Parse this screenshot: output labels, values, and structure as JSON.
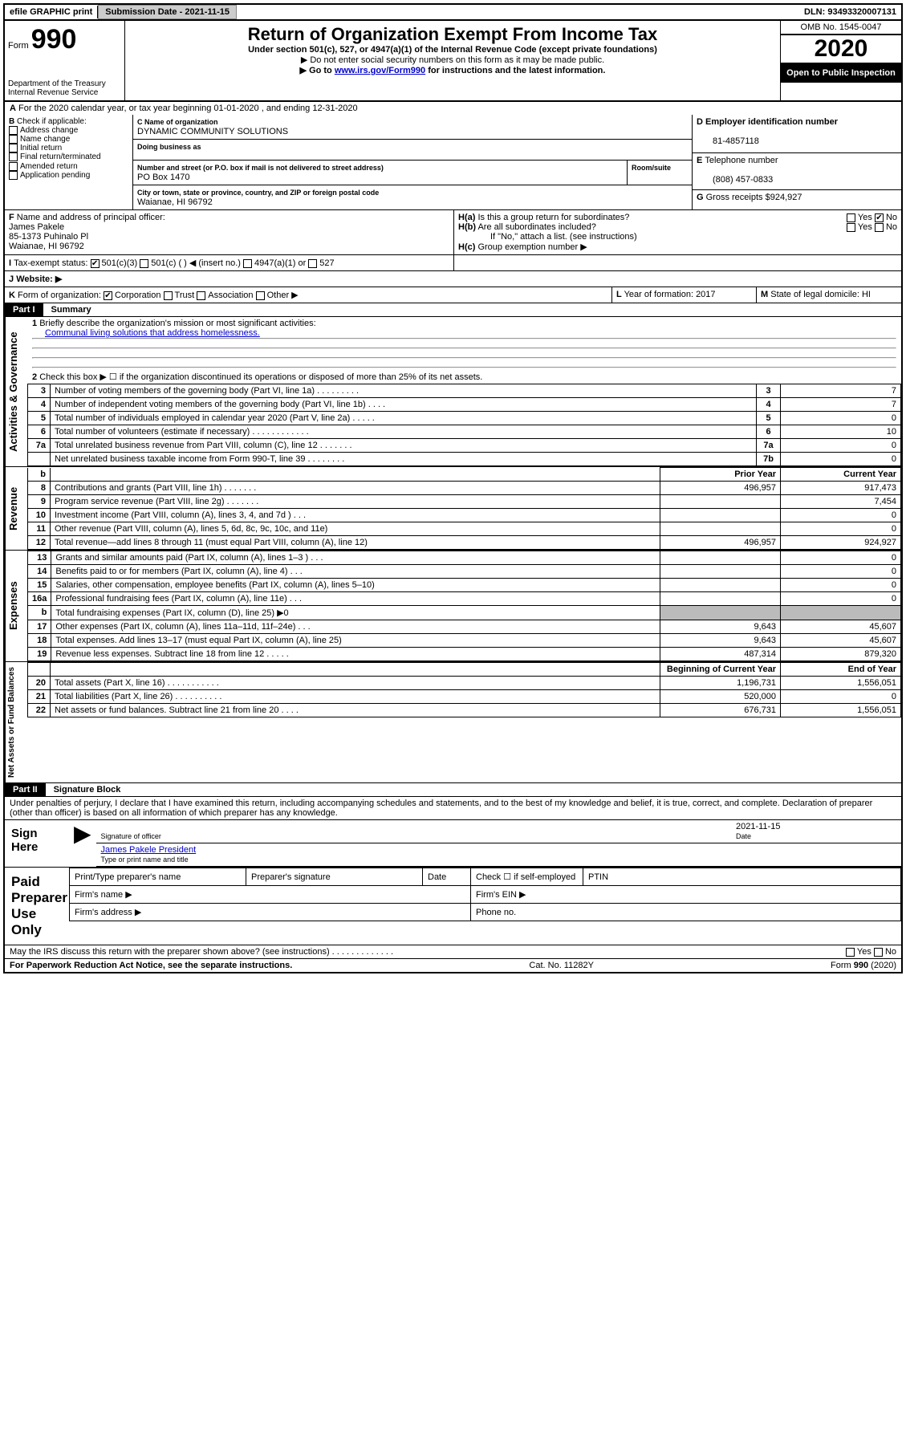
{
  "topbar": {
    "efile": "efile GRAPHIC print",
    "subdate_label": "Submission Date - ",
    "subdate": "2021-11-15",
    "dln_label": "DLN: ",
    "dln": "93493320007131"
  },
  "header": {
    "form_label": "Form",
    "form_num": "990",
    "dept": "Department of the Treasury",
    "irs": "Internal Revenue Service",
    "title": "Return of Organization Exempt From Income Tax",
    "subtitle": "Under section 501(c), 527, or 4947(a)(1) of the Internal Revenue Code (except private foundations)",
    "note1": "Do not enter social security numbers on this form as it may be made public.",
    "note2_pre": "Go to ",
    "note2_link": "www.irs.gov/Form990",
    "note2_post": " for instructions and the latest information.",
    "omb": "OMB No. 1545-0047",
    "year": "2020",
    "inspection": "Open to Public Inspection"
  },
  "period": {
    "text": "For the 2020 calendar year, or tax year beginning 01-01-2020   , and ending 12-31-2020"
  },
  "B": {
    "label": "Check if applicable:",
    "opts": [
      "Address change",
      "Name change",
      "Initial return",
      "Final return/terminated",
      "Amended return",
      "Application pending"
    ]
  },
  "C": {
    "name_label": "Name of organization",
    "name": "DYNAMIC COMMUNITY SOLUTIONS",
    "dba_label": "Doing business as",
    "street_label": "Number and street (or P.O. box if mail is not delivered to street address)",
    "room_label": "Room/suite",
    "street": "PO Box 1470",
    "city_label": "City or town, state or province, country, and ZIP or foreign postal code",
    "city": "Waianae, HI  96792"
  },
  "D": {
    "label": "Employer identification number",
    "val": "81-4857118"
  },
  "E": {
    "label": "Telephone number",
    "val": "(808) 457-0833"
  },
  "G": {
    "label": "Gross receipts $",
    "val": "924,927"
  },
  "F": {
    "label": "Name and address of principal officer:",
    "name": "James Pakele",
    "addr1": "85-1373 Puhinalo Pl",
    "addr2": "Waianae, HI  96792"
  },
  "H": {
    "a": "Is this a group return for subordinates?",
    "b": "Are all subordinates included?",
    "bnote": "If \"No,\" attach a list. (see instructions)",
    "c": "Group exemption number ▶",
    "yes": "Yes",
    "no": "No"
  },
  "I": {
    "label": "Tax-exempt status:",
    "o1": "501(c)(3)",
    "o2": "501(c) (  ) ◀ (insert no.)",
    "o3": "4947(a)(1) or",
    "o4": "527"
  },
  "J": {
    "label": "Website: ▶"
  },
  "K": {
    "label": "Form of organization:",
    "opts": [
      "Corporation",
      "Trust",
      "Association",
      "Other ▶"
    ]
  },
  "L": {
    "label": "Year of formation:",
    "val": "2017"
  },
  "M": {
    "label": "State of legal domicile:",
    "val": "HI"
  },
  "part1": {
    "label": "Part I",
    "title": "Summary",
    "l1_label": "Briefly describe the organization's mission or most significant activities:",
    "l1_val": "Communal living solutions that address homelessness.",
    "l2": "Check this box ▶ ☐  if the organization discontinued its operations or disposed of more than 25% of its net assets.",
    "rows_gov": [
      {
        "n": "3",
        "d": "Number of voting members of the governing body (Part VI, line 1a)   .   .   .   .   .   .   .   .   .",
        "a": "3",
        "v": "7"
      },
      {
        "n": "4",
        "d": "Number of independent voting members of the governing body (Part VI, line 1b)   .   .   .   .",
        "a": "4",
        "v": "7"
      },
      {
        "n": "5",
        "d": "Total number of individuals employed in calendar year 2020 (Part V, line 2a)   .   .   .   .   .",
        "a": "5",
        "v": "0"
      },
      {
        "n": "6",
        "d": "Total number of volunteers (estimate if necessary)   .   .   .   .   .   .   .   .   .   .   .   .",
        "a": "6",
        "v": "10"
      },
      {
        "n": "7a",
        "d": "Total unrelated business revenue from Part VIII, column (C), line 12   .   .   .   .   .   .   .",
        "a": "7a",
        "v": "0"
      },
      {
        "n": "",
        "d": "Net unrelated business taxable income from Form 990-T, line 39   .   .   .   .   .   .   .   .",
        "a": "7b",
        "v": "0"
      }
    ],
    "col_prior": "Prior Year",
    "col_current": "Current Year",
    "rows_rev": [
      {
        "n": "8",
        "d": "Contributions and grants (Part VIII, line 1h)   .   .   .   .   .   .   .",
        "p": "496,957",
        "c": "917,473"
      },
      {
        "n": "9",
        "d": "Program service revenue (Part VIII, line 2g)   .   .   .   .   .   .   .",
        "p": "",
        "c": "7,454"
      },
      {
        "n": "10",
        "d": "Investment income (Part VIII, column (A), lines 3, 4, and 7d )   .   .   .",
        "p": "",
        "c": "0"
      },
      {
        "n": "11",
        "d": "Other revenue (Part VIII, column (A), lines 5, 6d, 8c, 9c, 10c, and 11e)",
        "p": "",
        "c": "0"
      },
      {
        "n": "12",
        "d": "Total revenue—add lines 8 through 11 (must equal Part VIII, column (A), line 12)",
        "p": "496,957",
        "c": "924,927"
      }
    ],
    "rows_exp": [
      {
        "n": "13",
        "d": "Grants and similar amounts paid (Part IX, column (A), lines 1–3 )   .   .   .",
        "p": "",
        "c": "0"
      },
      {
        "n": "14",
        "d": "Benefits paid to or for members (Part IX, column (A), line 4)   .   .   .",
        "p": "",
        "c": "0"
      },
      {
        "n": "15",
        "d": "Salaries, other compensation, employee benefits (Part IX, column (A), lines 5–10)",
        "p": "",
        "c": "0"
      },
      {
        "n": "16a",
        "d": "Professional fundraising fees (Part IX, column (A), line 11e)   .   .   .",
        "p": "",
        "c": "0"
      },
      {
        "n": "b",
        "d": "Total fundraising expenses (Part IX, column (D), line 25) ▶0",
        "p": "GRAY",
        "c": "GRAY"
      },
      {
        "n": "17",
        "d": "Other expenses (Part IX, column (A), lines 11a–11d, 11f–24e)   .   .   .",
        "p": "9,643",
        "c": "45,607"
      },
      {
        "n": "18",
        "d": "Total expenses. Add lines 13–17 (must equal Part IX, column (A), line 25)",
        "p": "9,643",
        "c": "45,607"
      },
      {
        "n": "19",
        "d": "Revenue less expenses. Subtract line 18 from line 12   .   .   .   .   .",
        "p": "487,314",
        "c": "879,320"
      }
    ],
    "col_begin": "Beginning of Current Year",
    "col_end": "End of Year",
    "rows_net": [
      {
        "n": "20",
        "d": "Total assets (Part X, line 16)   .   .   .   .   .   .   .   .   .   .   .",
        "p": "1,196,731",
        "c": "1,556,051"
      },
      {
        "n": "21",
        "d": "Total liabilities (Part X, line 26)   .   .   .   .   .   .   .   .   .   .",
        "p": "520,000",
        "c": "0"
      },
      {
        "n": "22",
        "d": "Net assets or fund balances. Subtract line 21 from line 20   .   .   .   .",
        "p": "676,731",
        "c": "1,556,051"
      }
    ],
    "vlabels": {
      "gov": "Activities & Governance",
      "rev": "Revenue",
      "exp": "Expenses",
      "net": "Net Assets or Fund Balances"
    }
  },
  "part2": {
    "label": "Part II",
    "title": "Signature Block",
    "perjury": "Under penalties of perjury, I declare that I have examined this return, including accompanying schedules and statements, and to the best of my knowledge and belief, it is true, correct, and complete. Declaration of preparer (other than officer) is based on all information of which preparer has any knowledge.",
    "sign_here": "Sign Here",
    "sig_officer": "Signature of officer",
    "date_label": "Date",
    "sig_date": "2021-11-15",
    "typed_name": "James Pakele President",
    "typed_label": "Type or print name and title",
    "paid_label": "Paid Preparer Use Only",
    "prep_name": "Print/Type preparer's name",
    "prep_sig": "Preparer's signature",
    "prep_check": "Check ☐ if self-employed",
    "ptin": "PTIN",
    "firm_name": "Firm's name   ▶",
    "firm_ein": "Firm's EIN ▶",
    "firm_addr": "Firm's address ▶",
    "phone": "Phone no.",
    "discuss": "May the IRS discuss this return with the preparer shown above? (see instructions)   .   .   .   .   .   .   .   .   .   .   .   .   .",
    "pra": "For Paperwork Reduction Act Notice, see the separate instructions.",
    "catno": "Cat. No. 11282Y",
    "formfoot": "Form 990 (2020)"
  }
}
